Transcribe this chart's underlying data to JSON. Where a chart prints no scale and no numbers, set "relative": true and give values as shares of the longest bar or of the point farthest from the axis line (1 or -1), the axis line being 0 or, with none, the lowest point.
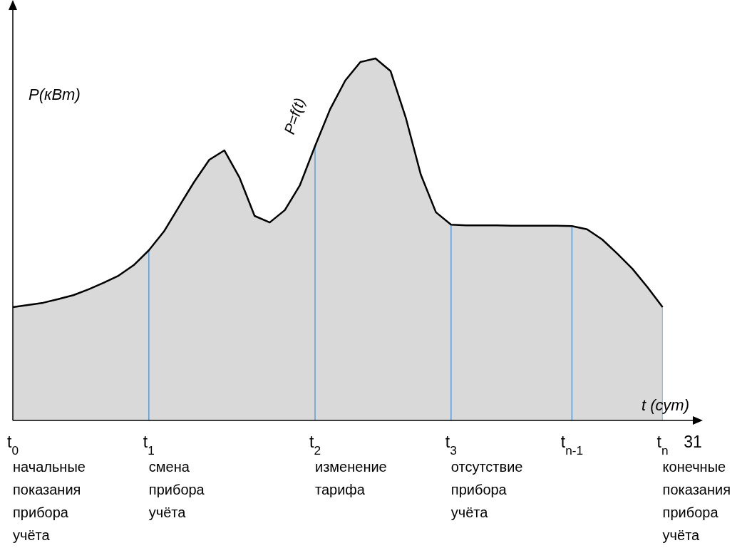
{
  "chart_data": {
    "type": "area",
    "relative": true,
    "xlabel": "t (сут)",
    "ylabel": "P(кВт)",
    "categories": [
      "t$_{0}$",
      null,
      null,
      null,
      null,
      null,
      null,
      null,
      null,
      "t$_{1}$",
      null,
      null,
      null,
      null,
      null,
      null,
      null,
      null,
      null,
      null,
      "t$_{2}$",
      null,
      null,
      null,
      null,
      null,
      null,
      null,
      null,
      "t$_{3}$",
      null,
      null,
      null,
      null,
      null,
      null,
      null,
      "t$_{n-1}$",
      null,
      null,
      null,
      null,
      null,
      "t$_{n}$",
      null,
      "31"
    ],
    "series": [
      {
        "color": "#d9d9d9",
        "values": [
          0.313,
          0.319,
          0.325,
          0.335,
          0.346,
          0.362,
          0.38,
          0.4,
          0.429,
          0.47,
          0.522,
          0.591,
          0.659,
          0.72,
          0.746,
          0.671,
          0.565,
          0.547,
          0.581,
          0.65,
          0.758,
          0.86,
          0.939,
          0.99,
          1,
          0.965,
          0.837,
          0.679,
          0.575,
          0.541,
          0.539,
          0.539,
          0.539,
          0.538,
          0.538,
          0.538,
          0.538,
          0.537,
          0.528,
          0.5,
          0.461,
          0.419,
          0.368,
          0.313,
          null,
          null
        ]
      }
    ],
    "ref_lines": [
      {
        "axis": "x",
        "value": "t$_{1}$",
        "color": "#5b9bd5"
      },
      {
        "axis": "x",
        "value": "t$_{2}$",
        "color": "#5b9bd5"
      },
      {
        "axis": "x",
        "value": "t$_{3}$",
        "color": "#5b9bd5"
      },
      {
        "axis": "x",
        "value": "t$_{n-1}$",
        "color": "#5b9bd5"
      },
      {
        "axis": "x",
        "value": "t$_{n}$",
        "color": "#5b9bd5"
      }
    ],
    "annotations": [
      "P=f(t)",
      "начальные показания прибора учёта",
      "смена прибора учёта",
      "изменение тарифа",
      "отсутствие прибора учёта",
      "конечные показания прибора учёта"
    ]
  }
}
